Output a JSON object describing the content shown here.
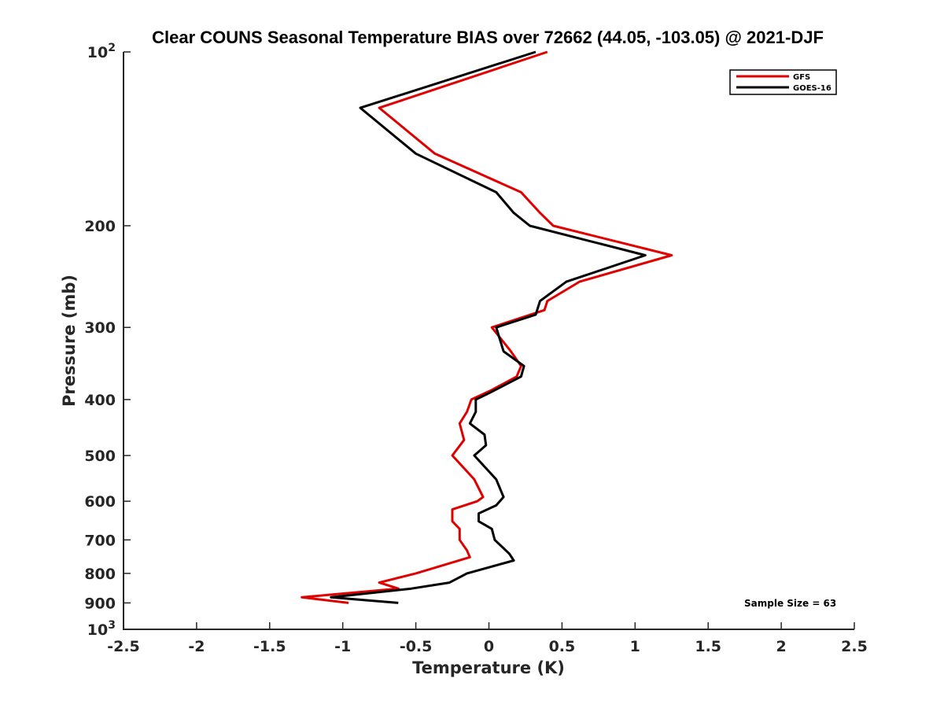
{
  "chart_data": {
    "type": "line",
    "title": "Clear COUNS Seasonal Temperature BIAS over 72662 (44.05, -103.05) @ 2021-DJF",
    "xlabel": "Temperature (K)",
    "ylabel": "Pressure (mb)",
    "xlim": [
      -2.5,
      2.5
    ],
    "ylim": [
      100,
      1000
    ],
    "yscale": "log",
    "y_direction": "reversed",
    "x_ticks": [
      "-2.5",
      "-2",
      "-1.5",
      "-1",
      "-0.5",
      "0",
      "0.5",
      "1",
      "1.5",
      "2",
      "2.5"
    ],
    "y_ticks": [
      {
        "value": 100,
        "label": "10",
        "sup": "2"
      },
      {
        "value": 200,
        "label": "200"
      },
      {
        "value": 300,
        "label": "300"
      },
      {
        "value": 400,
        "label": "400"
      },
      {
        "value": 500,
        "label": "500"
      },
      {
        "value": 600,
        "label": "600"
      },
      {
        "value": 700,
        "label": "700"
      },
      {
        "value": 800,
        "label": "800"
      },
      {
        "value": 900,
        "label": "900"
      },
      {
        "value": 1000,
        "label": "10",
        "sup": "3"
      }
    ],
    "legend": {
      "position": "top-right"
    },
    "annotation": "Sample Size = 63",
    "series": [
      {
        "name": "GFS",
        "color": "#e00000",
        "points": [
          [
            0.4,
            100
          ],
          [
            -0.75,
            125
          ],
          [
            -0.37,
            150
          ],
          [
            0.22,
            175
          ],
          [
            0.35,
            190
          ],
          [
            0.44,
            200
          ],
          [
            1.25,
            225
          ],
          [
            0.62,
            250
          ],
          [
            0.4,
            270
          ],
          [
            0.38,
            280
          ],
          [
            0.02,
            300
          ],
          [
            0.15,
            330
          ],
          [
            0.22,
            350
          ],
          [
            0.19,
            365
          ],
          [
            0.02,
            385
          ],
          [
            -0.12,
            400
          ],
          [
            -0.15,
            420
          ],
          [
            -0.2,
            440
          ],
          [
            -0.17,
            470
          ],
          [
            -0.25,
            500
          ],
          [
            -0.1,
            550
          ],
          [
            -0.04,
            590
          ],
          [
            -0.08,
            600
          ],
          [
            -0.25,
            620
          ],
          [
            -0.25,
            650
          ],
          [
            -0.2,
            670
          ],
          [
            -0.2,
            700
          ],
          [
            -0.15,
            730
          ],
          [
            -0.13,
            750
          ],
          [
            -0.5,
            800
          ],
          [
            -0.75,
            830
          ],
          [
            -0.62,
            850
          ],
          [
            -1.28,
            880
          ],
          [
            -0.96,
            900
          ]
        ]
      },
      {
        "name": "GOES-16",
        "color": "#000000",
        "points": [
          [
            0.32,
            100
          ],
          [
            -0.88,
            125
          ],
          [
            -0.5,
            150
          ],
          [
            0.05,
            175
          ],
          [
            0.17,
            190
          ],
          [
            0.28,
            200
          ],
          [
            1.07,
            225
          ],
          [
            0.53,
            250
          ],
          [
            0.35,
            270
          ],
          [
            0.32,
            285
          ],
          [
            0.05,
            300
          ],
          [
            0.1,
            330
          ],
          [
            0.24,
            350
          ],
          [
            0.22,
            365
          ],
          [
            0.0,
            390
          ],
          [
            -0.09,
            400
          ],
          [
            -0.09,
            420
          ],
          [
            -0.13,
            440
          ],
          [
            -0.03,
            460
          ],
          [
            -0.02,
            480
          ],
          [
            -0.1,
            500
          ],
          [
            0.05,
            550
          ],
          [
            0.1,
            590
          ],
          [
            0.05,
            610
          ],
          [
            -0.07,
            630
          ],
          [
            -0.07,
            650
          ],
          [
            0.02,
            670
          ],
          [
            0.04,
            700
          ],
          [
            0.14,
            740
          ],
          [
            0.17,
            760
          ],
          [
            -0.15,
            800
          ],
          [
            -0.27,
            830
          ],
          [
            -0.53,
            850
          ],
          [
            -1.08,
            880
          ],
          [
            -0.62,
            900
          ]
        ]
      }
    ]
  }
}
